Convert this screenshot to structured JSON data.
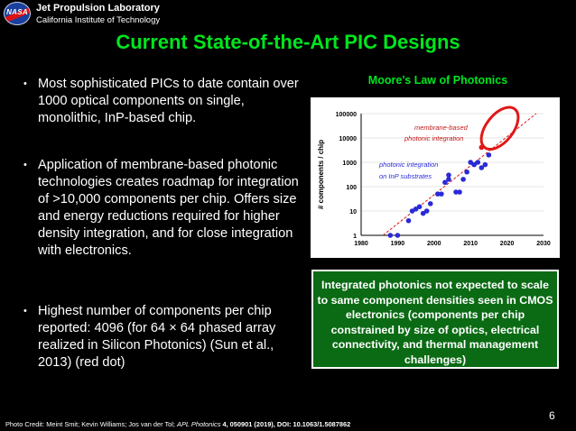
{
  "header": {
    "logo_text": "NASA",
    "org_name": "Jet Propulsion Laboratory",
    "org_sub": "California Institute of Technology"
  },
  "title": "Current State-of-the-Art PIC Designs",
  "bullets": [
    "Most sophisticated PICs to date contain over 1000 optical components on single, monolithic, InP-based chip.",
    "Application of membrane-based photonic technologies creates roadmap for integration of >10,000 components per chip. Offers size and energy reductions required for higher density integration, and for close integration with electronics.",
    "Highest number of components per chip reported: 4096 (for 64 × 64 phased array realized in Silicon Photonics) (Sun et al., 2013) (red dot)"
  ],
  "chart_title": "Moore’s Law of Photonics",
  "chart_data": {
    "type": "scatter",
    "ylabel": "# components / chip",
    "ylog": true,
    "ylim": [
      1,
      100000
    ],
    "xlim": [
      1980,
      2030
    ],
    "xticks": [
      "1980",
      "1990",
      "2000",
      "2010",
      "2020",
      "2030"
    ],
    "yticks": [
      "1",
      "10",
      "100",
      "1000",
      "10000",
      "100000"
    ],
    "annotations": [
      "membrane-based",
      "photonic integration",
      "photonic integration",
      "on InP substrates"
    ],
    "series": [
      {
        "color": "#2a2ad6",
        "points": [
          [
            1988,
            1
          ],
          [
            1990,
            1
          ],
          [
            1993,
            4
          ],
          [
            1994,
            10
          ],
          [
            1995,
            12
          ],
          [
            1996,
            15
          ],
          [
            1997,
            8
          ],
          [
            1998,
            10
          ],
          [
            1999,
            20
          ],
          [
            2001,
            50
          ],
          [
            2002,
            50
          ],
          [
            2003,
            150
          ],
          [
            2004,
            200
          ],
          [
            2004,
            300
          ],
          [
            2006,
            60
          ],
          [
            2007,
            60
          ],
          [
            2008,
            200
          ],
          [
            2009,
            400
          ],
          [
            2010,
            1000
          ],
          [
            2011,
            800
          ],
          [
            2012,
            1000
          ],
          [
            2013,
            600
          ],
          [
            2014,
            800
          ],
          [
            2015,
            2000
          ]
        ]
      },
      {
        "color": "#e01818",
        "points": [
          [
            2013,
            4096
          ]
        ]
      }
    ]
  },
  "callout": "Integrated photonics not expected to scale to same component densities seen in CMOS electronics (components per chip constrained by size of optics, electrical connectivity, and thermal management challenges)",
  "credit": {
    "prefix": "Photo Credit: Meint Smit; Kevin Williams; Jos van der Tol;",
    "journal": "APL Photonics",
    "rest": "4, 050901 (2019), DOI: 10.1063/1.5087862"
  },
  "slide_number": "6"
}
